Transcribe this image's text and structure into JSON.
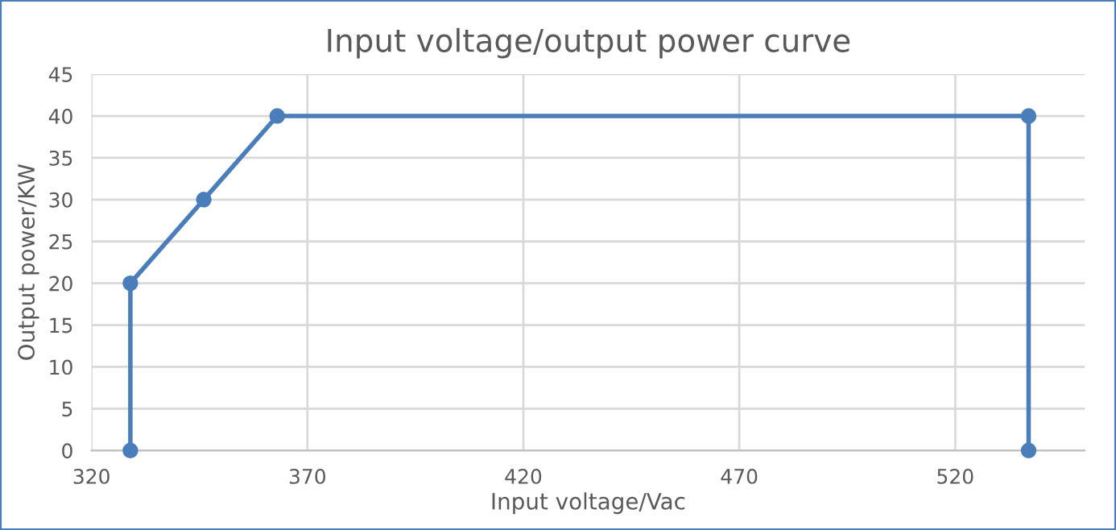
{
  "chart_data": {
    "type": "line",
    "title": "Input voltage/output power curve",
    "xlabel": "Input voltage/Vac",
    "ylabel": "Output power/KW",
    "series": [
      {
        "color": "#4a7ebb",
        "x": [
          329,
          329,
          346,
          363,
          537,
          537
        ],
        "values": [
          0,
          20,
          30,
          40,
          40,
          0
        ]
      }
    ],
    "xlim": [
      320,
      550
    ],
    "xticks": [
      320,
      370,
      420,
      470,
      520
    ],
    "ylim": [
      0,
      45
    ],
    "yticks": [
      0,
      5,
      10,
      15,
      20,
      25,
      30,
      35,
      40,
      45
    ],
    "grid": true,
    "marker": "circle",
    "line_style": "solid"
  }
}
